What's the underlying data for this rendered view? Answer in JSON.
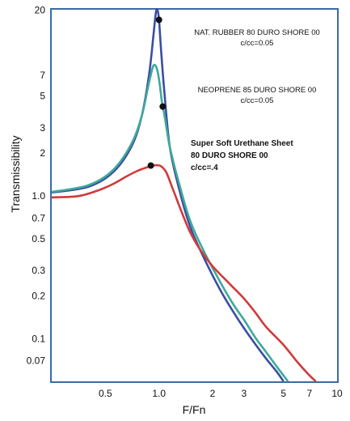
{
  "chart_data": {
    "type": "line",
    "xlabel": "F/Fn",
    "ylabel": "Transmissibility",
    "xscale": "log",
    "yscale": "log",
    "xlim": [
      0.25,
      10
    ],
    "ylim": [
      0.05,
      20
    ],
    "xticks": [
      {
        "value": 0.5,
        "label": "0.5"
      },
      {
        "value": 1,
        "label": "1.0"
      },
      {
        "value": 2,
        "label": "2"
      },
      {
        "value": 3,
        "label": "3"
      },
      {
        "value": 5,
        "label": "5"
      },
      {
        "value": 7,
        "label": "7"
      },
      {
        "value": 10,
        "label": "10"
      }
    ],
    "yticks": [
      {
        "value": 20,
        "label": "20"
      },
      {
        "value": 7,
        "label": "7"
      },
      {
        "value": 5,
        "label": "5"
      },
      {
        "value": 3,
        "label": "3"
      },
      {
        "value": 2,
        "label": "2"
      },
      {
        "value": 1,
        "label": "1.0"
      },
      {
        "value": 0.7,
        "label": "0.7"
      },
      {
        "value": 0.5,
        "label": "0.5"
      },
      {
        "value": 0.3,
        "label": "0.3"
      },
      {
        "value": 0.2,
        "label": "0.2"
      },
      {
        "value": 0.1,
        "label": "0.1"
      },
      {
        "value": 0.07,
        "label": "0.07"
      }
    ],
    "grid": false,
    "series": [
      {
        "color": "#3a4fa0",
        "points": [
          [
            0.25,
            1.05
          ],
          [
            0.4,
            1.15
          ],
          [
            0.55,
            1.45
          ],
          [
            0.7,
            2.2
          ],
          [
            0.8,
            3.6
          ],
          [
            0.88,
            7.0
          ],
          [
            0.93,
            13
          ],
          [
            0.96,
            19
          ],
          [
            0.98,
            20
          ],
          [
            1.0,
            17
          ],
          [
            1.03,
            10
          ],
          [
            1.07,
            5.5
          ],
          [
            1.15,
            2.2
          ],
          [
            1.3,
            1.1
          ],
          [
            1.5,
            0.6
          ],
          [
            1.8,
            0.36
          ],
          [
            2.2,
            0.22
          ],
          [
            2.6,
            0.155
          ],
          [
            3.0,
            0.118
          ],
          [
            3.5,
            0.09
          ],
          [
            4.0,
            0.072
          ],
          [
            4.6,
            0.058
          ],
          [
            5.0,
            0.05
          ]
        ]
      },
      {
        "color": "#3fa99a",
        "points": [
          [
            0.25,
            1.06
          ],
          [
            0.4,
            1.18
          ],
          [
            0.55,
            1.5
          ],
          [
            0.7,
            2.3
          ],
          [
            0.8,
            3.6
          ],
          [
            0.87,
            5.8
          ],
          [
            0.92,
            7.8
          ],
          [
            0.95,
            8.2
          ],
          [
            0.98,
            7.5
          ],
          [
            1.01,
            6.0
          ],
          [
            1.04,
            4.5
          ],
          [
            1.08,
            3.5
          ],
          [
            1.15,
            2.2
          ],
          [
            1.3,
            1.2
          ],
          [
            1.5,
            0.66
          ],
          [
            1.8,
            0.4
          ],
          [
            2.2,
            0.25
          ],
          [
            2.6,
            0.175
          ],
          [
            3.0,
            0.135
          ],
          [
            3.5,
            0.1
          ],
          [
            4.0,
            0.08
          ],
          [
            4.6,
            0.063
          ],
          [
            5.3,
            0.05
          ]
        ]
      },
      {
        "color": "#d13a3a",
        "points": [
          [
            0.25,
            0.97
          ],
          [
            0.35,
            0.99
          ],
          [
            0.45,
            1.08
          ],
          [
            0.55,
            1.2
          ],
          [
            0.65,
            1.35
          ],
          [
            0.75,
            1.48
          ],
          [
            0.85,
            1.57
          ],
          [
            0.92,
            1.62
          ],
          [
            0.98,
            1.63
          ],
          [
            1.03,
            1.6
          ],
          [
            1.1,
            1.45
          ],
          [
            1.2,
            1.1
          ],
          [
            1.35,
            0.75
          ],
          [
            1.5,
            0.55
          ],
          [
            1.7,
            0.42
          ],
          [
            2.0,
            0.32
          ],
          [
            2.5,
            0.24
          ],
          [
            3.0,
            0.19
          ],
          [
            3.5,
            0.15
          ],
          [
            4.0,
            0.12
          ],
          [
            5.0,
            0.09
          ],
          [
            6.0,
            0.068
          ],
          [
            7.0,
            0.055
          ],
          [
            7.6,
            0.05
          ]
        ]
      }
    ],
    "annotations": [
      {
        "lines": [
          "NAT. RUBBER 80 DURO SHORE 00",
          "c/cc=0.05"
        ],
        "style": "normal",
        "marker": [
          1.0,
          17
        ]
      },
      {
        "lines": [
          "NEOPRENE 85 DURO SHORE 00",
          "c/cc=0.05"
        ],
        "style": "normal",
        "marker": [
          1.05,
          4.2
        ]
      },
      {
        "lines": [
          "Super Soft Urethane Sheet",
          "80 DURO SHORE 00",
          "c/cc=.4"
        ],
        "style": "bold",
        "marker": [
          0.9,
          1.62
        ]
      }
    ]
  }
}
